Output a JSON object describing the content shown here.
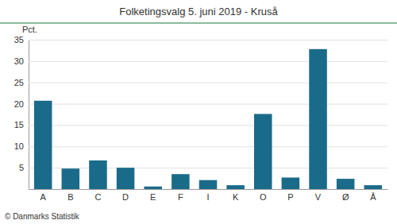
{
  "chart_data": {
    "type": "bar",
    "title": "Folketingsvalg 5. juni 2019 - Kruså",
    "ylabel": "Pct.",
    "footer": "© Danmarks Statistik",
    "categories": [
      "A",
      "B",
      "C",
      "D",
      "E",
      "F",
      "I",
      "K",
      "O",
      "P",
      "V",
      "Ø",
      "Å"
    ],
    "values": [
      20.7,
      4.8,
      6.7,
      5.0,
      0.6,
      3.5,
      2.1,
      0.9,
      17.6,
      2.7,
      32.8,
      2.4,
      0.9
    ],
    "color": "#1a6b8a",
    "ylim": [
      0,
      35
    ],
    "yticks": [
      5,
      10,
      15,
      20,
      25,
      30,
      35
    ],
    "grid": true
  }
}
